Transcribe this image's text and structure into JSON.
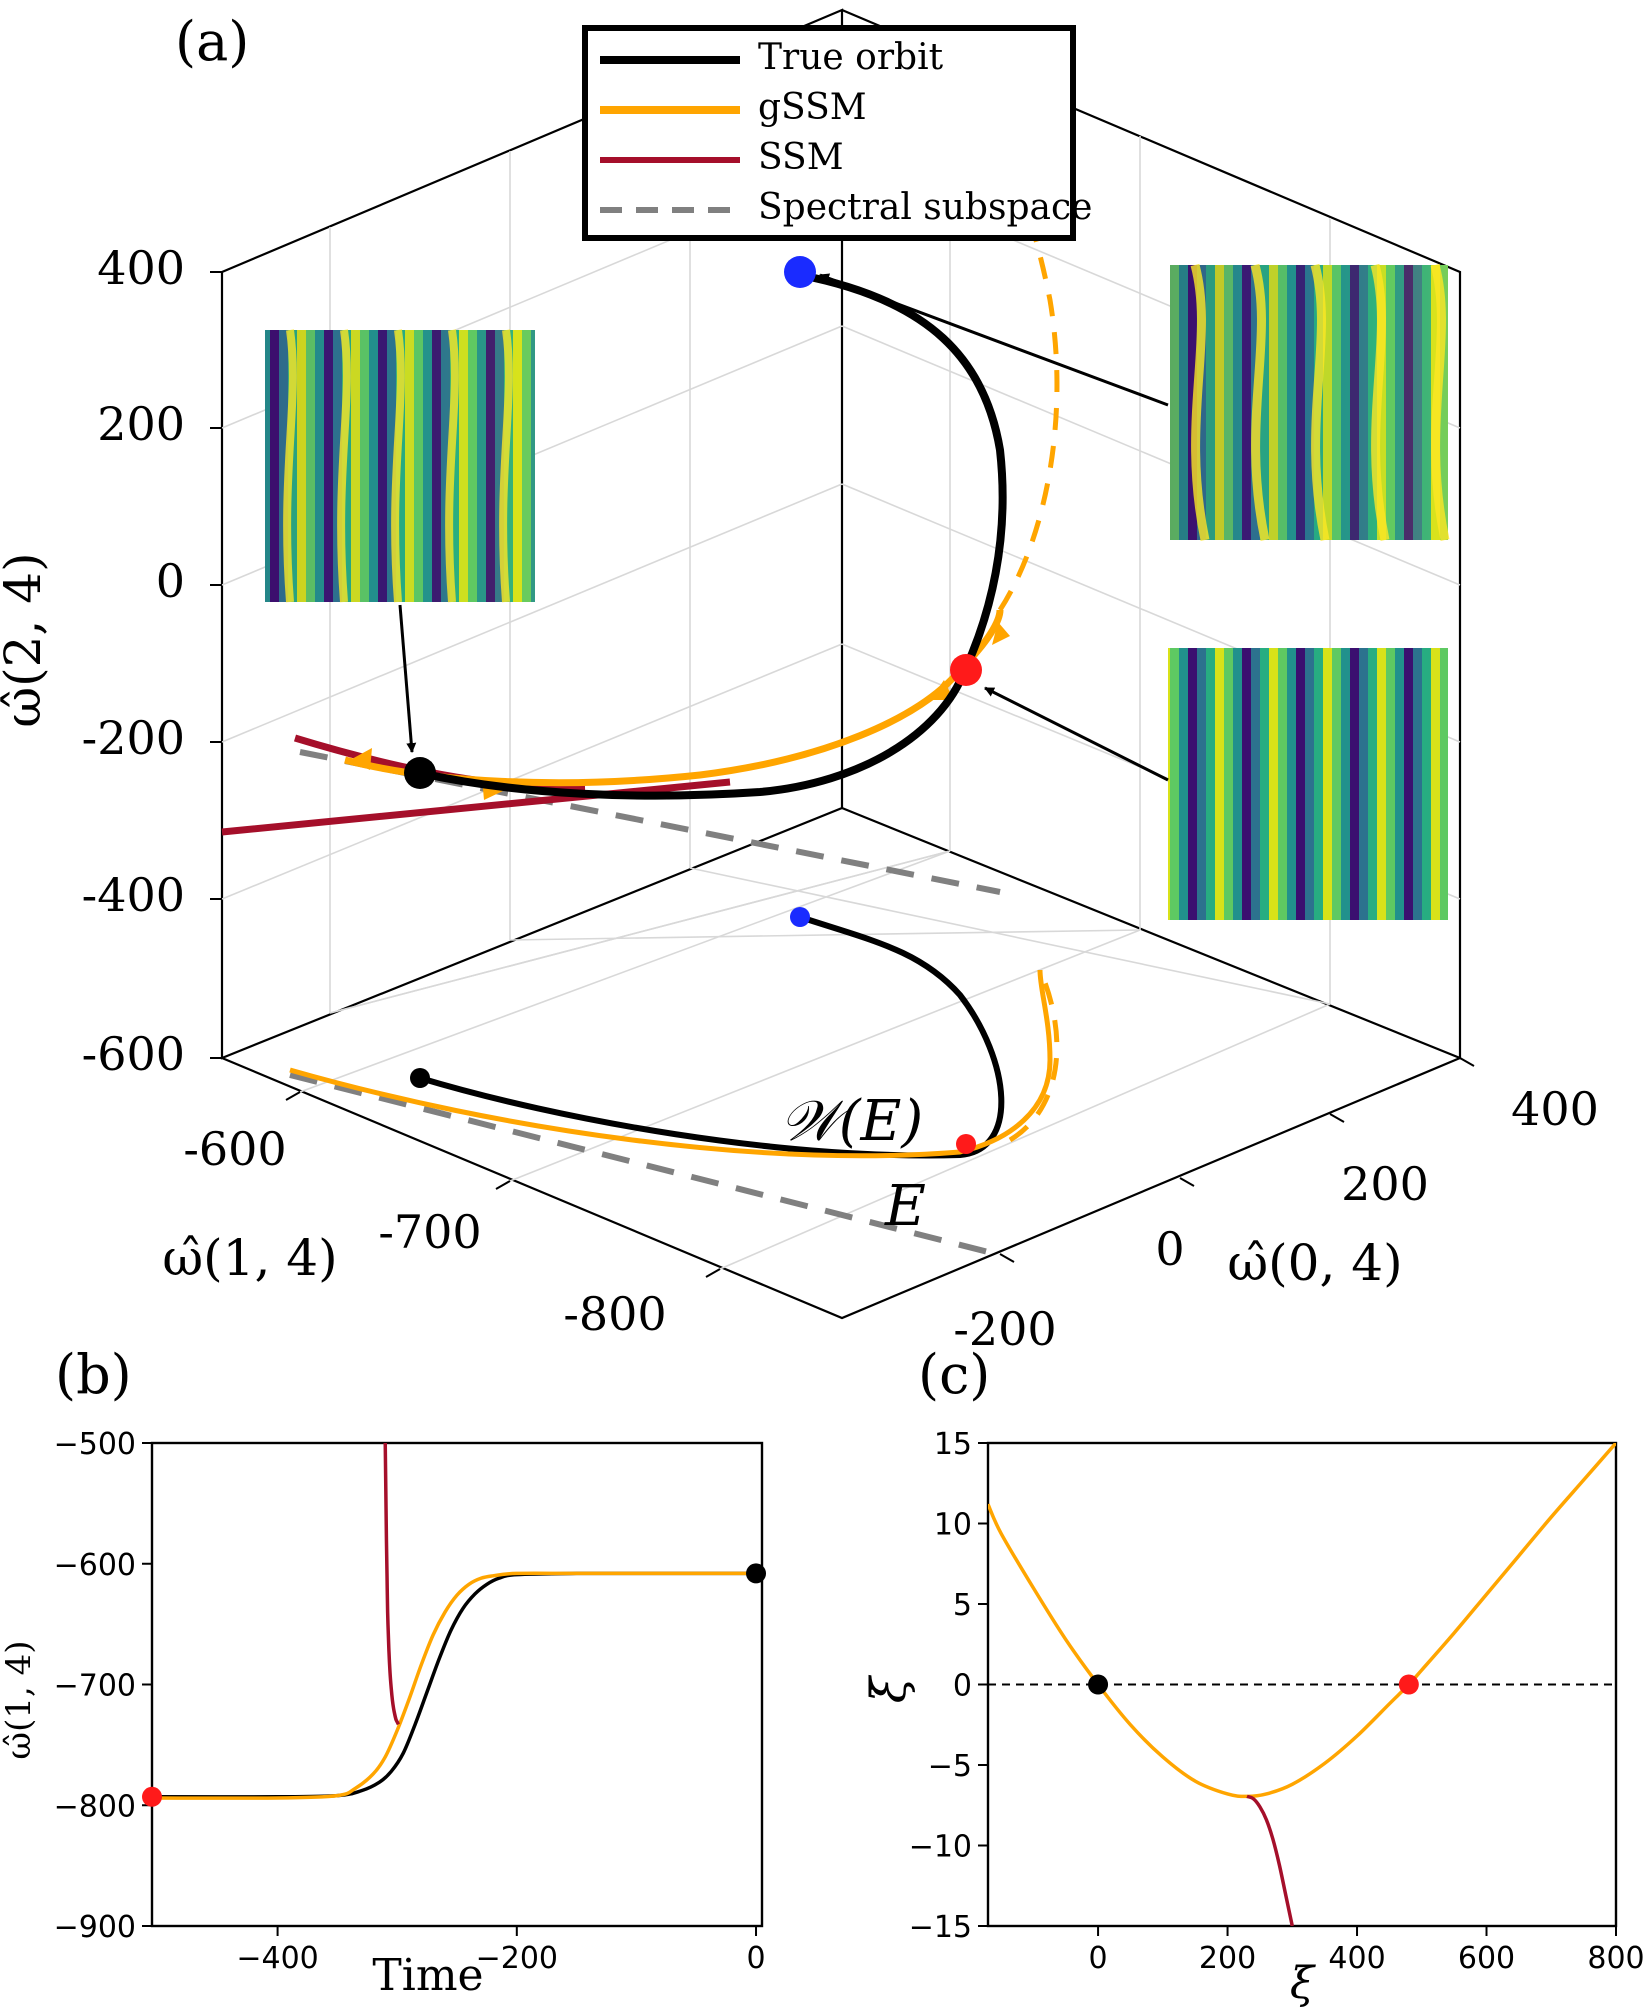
{
  "panels": {
    "a": "(a)",
    "b": "(b)",
    "c": "(c)"
  },
  "legend": [
    {
      "label": "True orbit",
      "color": "#000000",
      "style": "solid"
    },
    {
      "label": "gSSM",
      "color": "#FFA500",
      "style": "solid"
    },
    {
      "label": "SSM",
      "color": "#A50F2A",
      "style": "solid"
    },
    {
      "label": "Spectral subspace",
      "color": "#808080",
      "style": "dashed"
    }
  ],
  "colors": {
    "true_orbit": "#000000",
    "gssm": "#FFA500",
    "ssm": "#A50F2A",
    "spectral": "#808080",
    "fixed_point_black": "#000000",
    "fixed_point_red": "#FF1A1A",
    "fixed_point_blue": "#1A2BFF"
  },
  "annotations": {
    "manifold": "𝒲(E)",
    "subspace": "E"
  },
  "chart_data": [
    {
      "id": "a",
      "type": "line",
      "title": "",
      "projection": "3d",
      "zlabel": "ω̂(2, 4)",
      "xlabel": "ω̂(1, 4)",
      "ylabel": "ω̂(0, 4)",
      "zticks": [
        "400",
        "200",
        "0",
        "-200",
        "-400",
        "-600"
      ],
      "xticks": [
        "-600",
        "-700",
        "-800"
      ],
      "yticks": [
        "400",
        "200",
        "0",
        "-200"
      ],
      "zlim": [
        -600,
        400
      ],
      "xlim": [
        -850,
        -550
      ],
      "ylim": [
        -250,
        450
      ],
      "fixed_points": [
        {
          "name": "black",
          "x": -607,
          "y": -200,
          "z": -240
        },
        {
          "name": "red",
          "x": -793,
          "y": 260,
          "z": -110
        },
        {
          "name": "blue",
          "x": -720,
          "y": 390,
          "z": 395
        }
      ]
    },
    {
      "id": "b",
      "type": "line",
      "title": "",
      "xlabel": "Time",
      "ylabel": "ω̂(1, 4)",
      "xlim": [
        -505,
        5
      ],
      "ylim": [
        -900,
        -500
      ],
      "xticks": [
        -400,
        -200,
        0
      ],
      "yticks": [
        -500,
        -600,
        -700,
        -800,
        -900
      ],
      "series": [
        {
          "name": "True orbit",
          "color": "#000000",
          "x": [
            -505,
            -400,
            -350,
            -330,
            -315,
            -305,
            -295,
            -285,
            -275,
            -265,
            -255,
            -245,
            -235,
            -225,
            -215,
            -200,
            -150,
            -100,
            -50,
            0
          ],
          "y": [
            -793,
            -793,
            -792,
            -788,
            -781,
            -772,
            -757,
            -733,
            -706,
            -679,
            -655,
            -637,
            -625,
            -617,
            -612,
            -609,
            -608,
            -608,
            -608,
            -608
          ]
        },
        {
          "name": "gSSM",
          "color": "#FFA500",
          "x": [
            -505,
            -400,
            -350,
            -335,
            -320,
            -310,
            -300,
            -290,
            -280,
            -270,
            -260,
            -250,
            -240,
            -230,
            -220,
            -200,
            -150,
            -100,
            -50,
            0
          ],
          "y": [
            -794,
            -794,
            -792,
            -786,
            -774,
            -760,
            -738,
            -712,
            -684,
            -659,
            -640,
            -626,
            -617,
            -612,
            -610,
            -608,
            -608,
            -608,
            -608,
            -608
          ]
        },
        {
          "name": "SSM",
          "color": "#A50F2A",
          "x": [
            -310,
            -309.5,
            -309,
            -308.5,
            -308,
            -307,
            -306,
            -305,
            -304,
            -303,
            -302,
            -301,
            -300,
            -299
          ],
          "y": [
            -500,
            -540,
            -580,
            -610,
            -640,
            -670,
            -690,
            -703,
            -713,
            -720,
            -725,
            -729,
            -731,
            -733
          ]
        }
      ],
      "markers": [
        {
          "name": "red",
          "x": -505,
          "y": -793
        },
        {
          "name": "black",
          "x": 0,
          "y": -608
        }
      ]
    },
    {
      "id": "c",
      "type": "line",
      "title": "",
      "xlabel": "ξ",
      "ylabel": "ξ̇",
      "xlim": [
        -170,
        800
      ],
      "ylim": [
        -15,
        15
      ],
      "xticks": [
        0,
        200,
        400,
        600,
        800
      ],
      "yticks": [
        15,
        10,
        5,
        0,
        -5,
        -10,
        -15
      ],
      "zero_line": true,
      "series": [
        {
          "name": "gSSM",
          "color": "#FFA500",
          "x": [
            -170,
            -150,
            -100,
            -50,
            0,
            50,
            100,
            150,
            200,
            230,
            260,
            300,
            350,
            400,
            450,
            480,
            500,
            550,
            600,
            650,
            700,
            750,
            800
          ],
          "y": [
            11.2,
            9.4,
            6.0,
            2.8,
            0.0,
            -2.5,
            -4.5,
            -6.0,
            -6.8,
            -6.95,
            -6.8,
            -6.2,
            -4.9,
            -3.2,
            -1.2,
            0.0,
            0.9,
            3.2,
            5.6,
            8.0,
            10.4,
            12.7,
            15.0
          ]
        },
        {
          "name": "SSM",
          "color": "#A50F2A",
          "x": [
            230,
            240,
            250,
            260,
            270,
            280,
            290,
            300
          ],
          "y": [
            -6.95,
            -7.1,
            -7.6,
            -8.4,
            -9.6,
            -11.2,
            -13.1,
            -15.0
          ]
        }
      ],
      "markers": [
        {
          "name": "black",
          "x": 0,
          "y": 0
        },
        {
          "name": "red",
          "x": 480,
          "y": 0
        }
      ]
    }
  ]
}
